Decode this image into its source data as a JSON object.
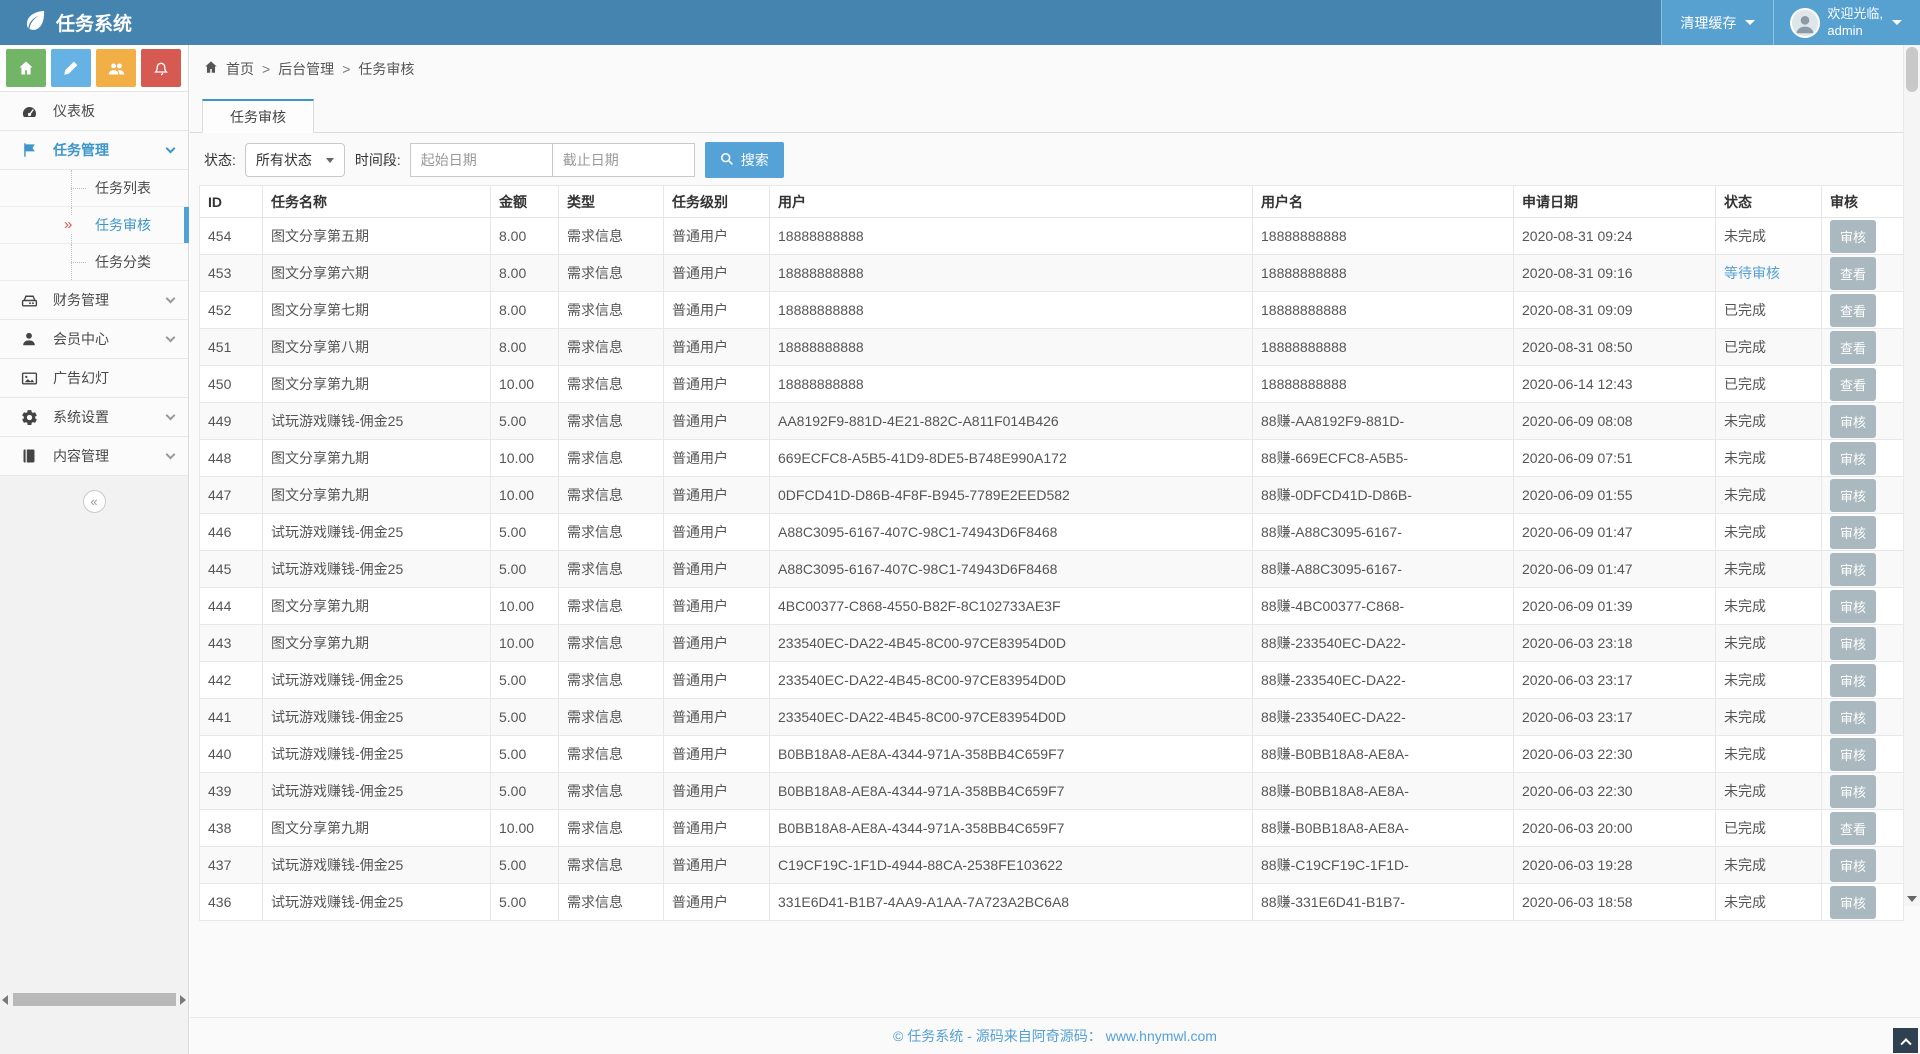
{
  "header": {
    "app_title": "任务系统",
    "clear_cache_label": "清理缓存",
    "welcome_line1": "欢迎光临,",
    "welcome_line2": "admin"
  },
  "sidebar": {
    "shortcut_icons": [
      "home-icon",
      "pencil-icon",
      "users-icon",
      "bell-icon"
    ],
    "items": [
      {
        "label": "仪表板",
        "icon": "dashboard-icon"
      },
      {
        "label": "任务管理",
        "icon": "flag-icon"
      },
      {
        "label": "任务列表"
      },
      {
        "label": "任务审核"
      },
      {
        "label": "任务分类"
      },
      {
        "label": "财务管理",
        "icon": "hdd-icon"
      },
      {
        "label": "会员中心",
        "icon": "user-icon"
      },
      {
        "label": "广告幻灯",
        "icon": "image-icon"
      },
      {
        "label": "系统设置",
        "icon": "gear-icon"
      },
      {
        "label": "内容管理",
        "icon": "book-icon"
      }
    ],
    "active_item": "任务审核",
    "active_marker": "»",
    "collapse_glyph": "«"
  },
  "breadcrumb": {
    "sep": ">",
    "items": [
      "首页",
      "后台管理",
      "任务审核"
    ]
  },
  "tab": {
    "label": "任务审核"
  },
  "filters": {
    "status_label": "状态:",
    "status_value": "所有状态",
    "period_label": "时间段:",
    "start_placeholder": "起始日期",
    "end_placeholder": "截止日期",
    "search_label": "搜索"
  },
  "table": {
    "columns": [
      "ID",
      "任务名称",
      "金额",
      "类型",
      "任务级别",
      "用户",
      "用户名",
      "申请日期",
      "状态",
      "审核"
    ],
    "status_highlight": "等待审核",
    "rows": [
      {
        "id": "454",
        "name": "图文分享第五期",
        "amount": "8.00",
        "type": "需求信息",
        "level": "普通用户",
        "user": "18888888888",
        "username": "18888888888",
        "date": "2020-08-31 09:24",
        "status": "未完成",
        "action": "审核"
      },
      {
        "id": "453",
        "name": "图文分享第六期",
        "amount": "8.00",
        "type": "需求信息",
        "level": "普通用户",
        "user": "18888888888",
        "username": "18888888888",
        "date": "2020-08-31 09:16",
        "status": "等待审核",
        "action": "查看"
      },
      {
        "id": "452",
        "name": "图文分享第七期",
        "amount": "8.00",
        "type": "需求信息",
        "level": "普通用户",
        "user": "18888888888",
        "username": "18888888888",
        "date": "2020-08-31 09:09",
        "status": "已完成",
        "action": "查看"
      },
      {
        "id": "451",
        "name": "图文分享第八期",
        "amount": "8.00",
        "type": "需求信息",
        "level": "普通用户",
        "user": "18888888888",
        "username": "18888888888",
        "date": "2020-08-31 08:50",
        "status": "已完成",
        "action": "查看"
      },
      {
        "id": "450",
        "name": "图文分享第九期",
        "amount": "10.00",
        "type": "需求信息",
        "level": "普通用户",
        "user": "18888888888",
        "username": "18888888888",
        "date": "2020-06-14 12:43",
        "status": "已完成",
        "action": "查看"
      },
      {
        "id": "449",
        "name": "试玩游戏赚钱-佣金25",
        "amount": "5.00",
        "type": "需求信息",
        "level": "普通用户",
        "user": "AA8192F9-881D-4E21-882C-A811F014B426",
        "username": "88赚-AA8192F9-881D-",
        "date": "2020-06-09 08:08",
        "status": "未完成",
        "action": "审核"
      },
      {
        "id": "448",
        "name": "图文分享第九期",
        "amount": "10.00",
        "type": "需求信息",
        "level": "普通用户",
        "user": "669ECFC8-A5B5-41D9-8DE5-B748E990A172",
        "username": "88赚-669ECFC8-A5B5-",
        "date": "2020-06-09 07:51",
        "status": "未完成",
        "action": "审核"
      },
      {
        "id": "447",
        "name": "图文分享第九期",
        "amount": "10.00",
        "type": "需求信息",
        "level": "普通用户",
        "user": "0DFCD41D-D86B-4F8F-B945-7789E2EED582",
        "username": "88赚-0DFCD41D-D86B-",
        "date": "2020-06-09 01:55",
        "status": "未完成",
        "action": "审核"
      },
      {
        "id": "446",
        "name": "试玩游戏赚钱-佣金25",
        "amount": "5.00",
        "type": "需求信息",
        "level": "普通用户",
        "user": "A88C3095-6167-407C-98C1-74943D6F8468",
        "username": "88赚-A88C3095-6167-",
        "date": "2020-06-09 01:47",
        "status": "未完成",
        "action": "审核"
      },
      {
        "id": "445",
        "name": "试玩游戏赚钱-佣金25",
        "amount": "5.00",
        "type": "需求信息",
        "level": "普通用户",
        "user": "A88C3095-6167-407C-98C1-74943D6F8468",
        "username": "88赚-A88C3095-6167-",
        "date": "2020-06-09 01:47",
        "status": "未完成",
        "action": "审核"
      },
      {
        "id": "444",
        "name": "图文分享第九期",
        "amount": "10.00",
        "type": "需求信息",
        "level": "普通用户",
        "user": "4BC00377-C868-4550-B82F-8C102733AE3F",
        "username": "88赚-4BC00377-C868-",
        "date": "2020-06-09 01:39",
        "status": "未完成",
        "action": "审核"
      },
      {
        "id": "443",
        "name": "图文分享第九期",
        "amount": "10.00",
        "type": "需求信息",
        "level": "普通用户",
        "user": "233540EC-DA22-4B45-8C00-97CE83954D0D",
        "username": "88赚-233540EC-DA22-",
        "date": "2020-06-03 23:18",
        "status": "未完成",
        "action": "审核"
      },
      {
        "id": "442",
        "name": "试玩游戏赚钱-佣金25",
        "amount": "5.00",
        "type": "需求信息",
        "level": "普通用户",
        "user": "233540EC-DA22-4B45-8C00-97CE83954D0D",
        "username": "88赚-233540EC-DA22-",
        "date": "2020-06-03 23:17",
        "status": "未完成",
        "action": "审核"
      },
      {
        "id": "441",
        "name": "试玩游戏赚钱-佣金25",
        "amount": "5.00",
        "type": "需求信息",
        "level": "普通用户",
        "user": "233540EC-DA22-4B45-8C00-97CE83954D0D",
        "username": "88赚-233540EC-DA22-",
        "date": "2020-06-03 23:17",
        "status": "未完成",
        "action": "审核"
      },
      {
        "id": "440",
        "name": "试玩游戏赚钱-佣金25",
        "amount": "5.00",
        "type": "需求信息",
        "level": "普通用户",
        "user": "B0BB18A8-AE8A-4344-971A-358BB4C659F7",
        "username": "88赚-B0BB18A8-AE8A-",
        "date": "2020-06-03 22:30",
        "status": "未完成",
        "action": "审核"
      },
      {
        "id": "439",
        "name": "试玩游戏赚钱-佣金25",
        "amount": "5.00",
        "type": "需求信息",
        "level": "普通用户",
        "user": "B0BB18A8-AE8A-4344-971A-358BB4C659F7",
        "username": "88赚-B0BB18A8-AE8A-",
        "date": "2020-06-03 22:30",
        "status": "未完成",
        "action": "审核"
      },
      {
        "id": "438",
        "name": "图文分享第九期",
        "amount": "10.00",
        "type": "需求信息",
        "level": "普通用户",
        "user": "B0BB18A8-AE8A-4344-971A-358BB4C659F7",
        "username": "88赚-B0BB18A8-AE8A-",
        "date": "2020-06-03 20:00",
        "status": "已完成",
        "action": "查看"
      },
      {
        "id": "437",
        "name": "试玩游戏赚钱-佣金25",
        "amount": "5.00",
        "type": "需求信息",
        "level": "普通用户",
        "user": "C19CF19C-1F1D-4944-88CA-2538FE103622",
        "username": "88赚-C19CF19C-1F1D-",
        "date": "2020-06-03 19:28",
        "status": "未完成",
        "action": "审核"
      },
      {
        "id": "436",
        "name": "试玩游戏赚钱-佣金25",
        "amount": "5.00",
        "type": "需求信息",
        "level": "普通用户",
        "user": "331E6D41-B1B7-4AA9-A1AA-7A723A2BC6A8",
        "username": "88赚-331E6D41-B1B7-",
        "date": "2020-06-03 18:58",
        "status": "未完成",
        "action": "审核"
      }
    ]
  },
  "footer": {
    "text": "© 任务系统 - 源码来自阿奇源码：",
    "link": "www.hnymwl.com"
  },
  "colors": {
    "accent": "#54a1d3",
    "header_bg": "#4484ae",
    "header_light_bg": "#57a1d1",
    "shortcut_green": "#72b566",
    "shortcut_blue": "#66b2e4",
    "shortcut_orange": "#f1af45",
    "shortcut_red": "#d75a52",
    "action_button_bg": "#aab8bf",
    "active_marker_red": "#d9534f"
  }
}
